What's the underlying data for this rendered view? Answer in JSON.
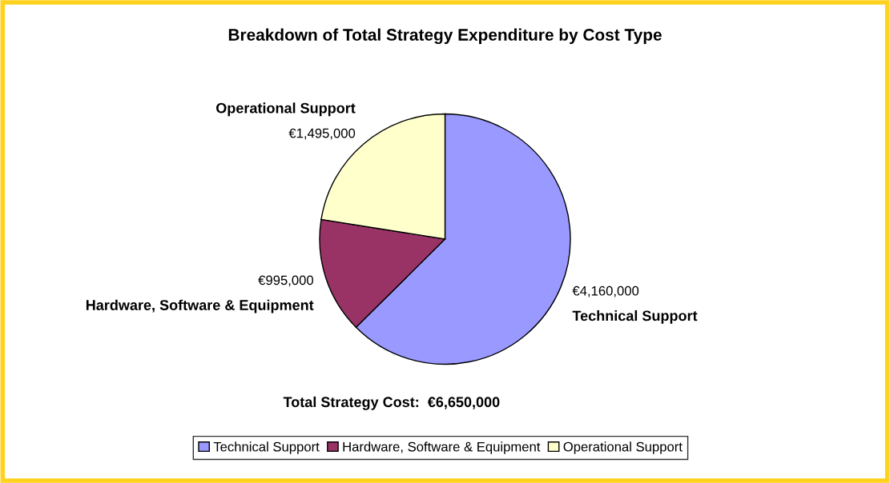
{
  "chart_data": {
    "type": "pie",
    "title": "Breakdown of Total Strategy Expenditure by Cost Type",
    "categories": [
      "Technical Support",
      "Hardware, Software & Equipment",
      "Operational Support"
    ],
    "values": [
      4160000,
      995000,
      1495000
    ],
    "colors": [
      "#9999ff",
      "#993366",
      "#ffffcc"
    ],
    "value_labels": [
      "€4,160,000",
      "€995,000",
      "€1,495,000"
    ],
    "annotations": [
      "Total Strategy Cost:  €6,650,000"
    ],
    "legend": "bottom"
  }
}
